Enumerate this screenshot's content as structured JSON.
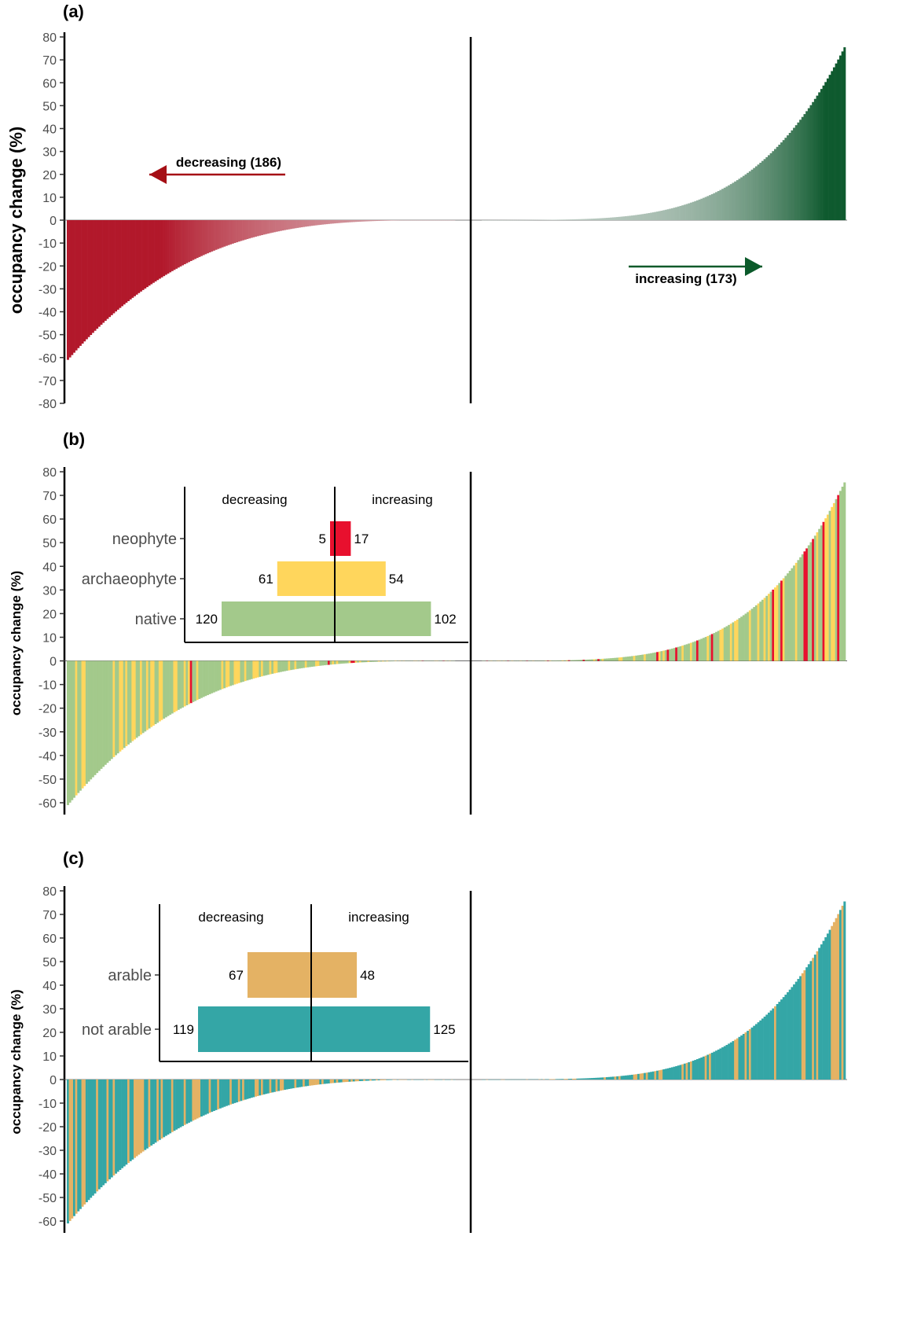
{
  "chart_data": [
    {
      "panel": "(a)",
      "type": "bar",
      "ylabel": "occupancy change (%)",
      "ylim": [
        -80,
        80
      ],
      "yticks": [
        80,
        70,
        60,
        50,
        40,
        30,
        20,
        10,
        0,
        -10,
        -20,
        -30,
        -40,
        -50,
        -60,
        -70,
        -80
      ],
      "grid": false,
      "series": [
        {
          "name": "decreasing (186)",
          "count": 186,
          "min": -61,
          "max": 0,
          "color_strong": "#b2182b",
          "color_light": "#e6e6e6"
        },
        {
          "name": "increasing (173)",
          "count": 173,
          "min": 0,
          "max": 75,
          "color_strong": "#0f5a2f",
          "color_light": "#e6e6e6"
        }
      ],
      "annotations": [
        {
          "text": "decreasing (186)",
          "arrow": "left",
          "color": "#a50f15"
        },
        {
          "text": "increasing (173)",
          "arrow": "right",
          "color": "#0b5a2a"
        }
      ]
    },
    {
      "panel": "(b)",
      "type": "bar",
      "ylabel": "occupancy change (%)",
      "ylim": [
        -65,
        80
      ],
      "yticks": [
        80,
        70,
        60,
        50,
        40,
        30,
        20,
        10,
        0,
        -10,
        -20,
        -30,
        -40,
        -50,
        -60
      ],
      "grid": false,
      "categories_colors": {
        "native": "#a3c98b",
        "archaeophyte": "#ffd65c",
        "neophyte": "#e8102e"
      },
      "inset": {
        "headers": [
          "decreasing",
          "increasing"
        ],
        "rows": [
          {
            "label": "neophyte",
            "decreasing": 5,
            "increasing": 17,
            "color": "#e8102e"
          },
          {
            "label": "archaeophyte",
            "decreasing": 61,
            "increasing": 54,
            "color": "#ffd65c"
          },
          {
            "label": "native",
            "decreasing": 120,
            "increasing": 102,
            "color": "#a3c98b"
          }
        ]
      }
    },
    {
      "panel": "(c)",
      "type": "bar",
      "ylabel": "occupancy change (%)",
      "ylim": [
        -65,
        80
      ],
      "yticks": [
        80,
        70,
        60,
        50,
        40,
        30,
        20,
        10,
        0,
        -10,
        -20,
        -30,
        -40,
        -50,
        -60
      ],
      "grid": false,
      "categories_colors": {
        "arable": "#e4b264",
        "not arable": "#34a6a6"
      },
      "inset": {
        "headers": [
          "decreasing",
          "increasing"
        ],
        "rows": [
          {
            "label": "arable",
            "decreasing": 67,
            "increasing": 48,
            "color": "#e4b264"
          },
          {
            "label": "not arable",
            "decreasing": 119,
            "increasing": 125,
            "color": "#34a6a6"
          }
        ]
      }
    }
  ]
}
